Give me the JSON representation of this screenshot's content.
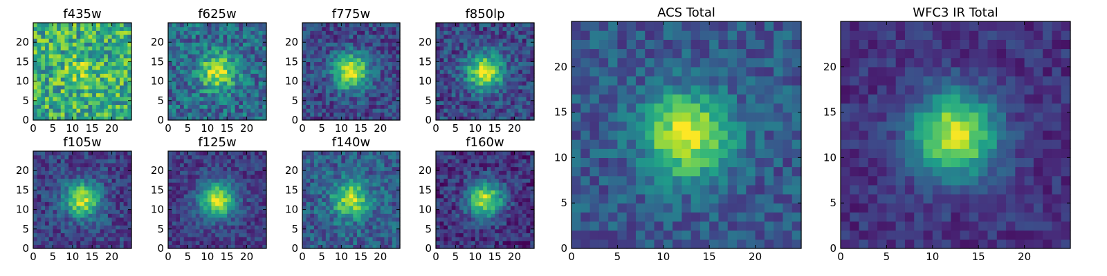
{
  "chart_data": [
    {
      "type": "heatmap",
      "title": "f435w",
      "colormap": "viridis",
      "peak": 0.15,
      "noise": 0.55,
      "bias": 0.62,
      "seed": 11,
      "xlim": [
        0,
        25
      ],
      "ylim": [
        0,
        25
      ],
      "xticks": [
        0,
        5,
        10,
        15,
        20
      ],
      "yticks": [
        0,
        5,
        10,
        15,
        20
      ],
      "xtick_labels": [
        "0",
        "5",
        "10",
        "15",
        "20"
      ],
      "ytick_labels": [
        "0",
        "5",
        "10",
        "15",
        "20"
      ]
    },
    {
      "type": "heatmap",
      "title": "f625w",
      "colormap": "viridis",
      "peak": 0.6,
      "noise": 0.42,
      "bias": 0.35,
      "seed": 23,
      "xlim": [
        0,
        25
      ],
      "ylim": [
        0,
        25
      ],
      "xticks": [
        0,
        5,
        10,
        15,
        20
      ],
      "yticks": [
        0,
        5,
        10,
        15,
        20
      ],
      "xtick_labels": [
        "0",
        "5",
        "10",
        "15",
        "20"
      ],
      "ytick_labels": [
        "0",
        "5",
        "10",
        "15",
        "20"
      ]
    },
    {
      "type": "heatmap",
      "title": "f775w",
      "colormap": "viridis",
      "peak": 0.75,
      "noise": 0.33,
      "bias": 0.22,
      "seed": 37,
      "xlim": [
        0,
        25
      ],
      "ylim": [
        0,
        25
      ],
      "xticks": [
        0,
        5,
        10,
        15,
        20
      ],
      "yticks": [
        0,
        5,
        10,
        15,
        20
      ],
      "xtick_labels": [
        "0",
        "5",
        "10",
        "15",
        "20"
      ],
      "ytick_labels": [
        "0",
        "5",
        "10",
        "15",
        "20"
      ]
    },
    {
      "type": "heatmap",
      "title": "f850lp",
      "colormap": "viridis",
      "peak": 0.75,
      "noise": 0.35,
      "bias": 0.22,
      "seed": 41,
      "xlim": [
        0,
        25
      ],
      "ylim": [
        0,
        25
      ],
      "xticks": [
        0,
        5,
        10,
        15,
        20
      ],
      "yticks": [
        0,
        5,
        10,
        15,
        20
      ],
      "xtick_labels": [
        "0",
        "5",
        "10",
        "15",
        "20"
      ],
      "ytick_labels": [
        "0",
        "5",
        "10",
        "15",
        "20"
      ]
    },
    {
      "type": "heatmap",
      "title": "f105w",
      "colormap": "viridis",
      "peak": 0.7,
      "noise": 0.3,
      "bias": 0.2,
      "seed": 53,
      "xlim": [
        0,
        25
      ],
      "ylim": [
        0,
        25
      ],
      "xticks": [
        0,
        5,
        10,
        15,
        20
      ],
      "yticks": [
        0,
        5,
        10,
        15,
        20
      ],
      "xtick_labels": [
        "0",
        "5",
        "10",
        "15",
        "20"
      ],
      "ytick_labels": [
        "0",
        "5",
        "10",
        "15",
        "20"
      ]
    },
    {
      "type": "heatmap",
      "title": "f125w",
      "colormap": "viridis",
      "peak": 0.75,
      "noise": 0.25,
      "bias": 0.18,
      "seed": 67,
      "xlim": [
        0,
        25
      ],
      "ylim": [
        0,
        25
      ],
      "xticks": [
        0,
        5,
        10,
        15,
        20
      ],
      "yticks": [
        0,
        5,
        10,
        15,
        20
      ],
      "xtick_labels": [
        "0",
        "5",
        "10",
        "15",
        "20"
      ],
      "ytick_labels": [
        "0",
        "5",
        "10",
        "15",
        "20"
      ]
    },
    {
      "type": "heatmap",
      "title": "f140w",
      "colormap": "viridis",
      "peak": 0.6,
      "noise": 0.35,
      "bias": 0.3,
      "seed": 79,
      "xlim": [
        0,
        25
      ],
      "ylim": [
        0,
        25
      ],
      "xticks": [
        0,
        5,
        10,
        15,
        20
      ],
      "yticks": [
        0,
        5,
        10,
        15,
        20
      ],
      "xtick_labels": [
        "0",
        "5",
        "10",
        "15",
        "20"
      ],
      "ytick_labels": [
        "0",
        "5",
        "10",
        "15",
        "20"
      ]
    },
    {
      "type": "heatmap",
      "title": "f160w",
      "colormap": "viridis",
      "peak": 0.75,
      "noise": 0.3,
      "bias": 0.15,
      "seed": 83,
      "xlim": [
        0,
        25
      ],
      "ylim": [
        0,
        25
      ],
      "xticks": [
        0,
        5,
        10,
        15,
        20
      ],
      "yticks": [
        0,
        5,
        10,
        15,
        20
      ],
      "xtick_labels": [
        "0",
        "5",
        "10",
        "15",
        "20"
      ],
      "ytick_labels": [
        "0",
        "5",
        "10",
        "15",
        "20"
      ]
    },
    {
      "type": "heatmap",
      "title": "ACS Total",
      "colormap": "viridis",
      "peak": 0.7,
      "noise": 0.28,
      "bias": 0.28,
      "seed": 97,
      "xlim": [
        0,
        25
      ],
      "ylim": [
        0,
        25
      ],
      "xticks": [
        0,
        5,
        10,
        15,
        20
      ],
      "yticks": [
        0,
        5,
        10,
        15,
        20
      ],
      "xtick_labels": [
        "0",
        "5",
        "10",
        "15",
        "20"
      ],
      "ytick_labels": [
        "0",
        "5",
        "10",
        "15",
        "20"
      ]
    },
    {
      "type": "heatmap",
      "title": "WFC3 IR Total",
      "colormap": "viridis",
      "peak": 0.8,
      "noise": 0.2,
      "bias": 0.15,
      "seed": 101,
      "xlim": [
        0,
        25
      ],
      "ylim": [
        0,
        25
      ],
      "xticks": [
        0,
        5,
        10,
        15,
        20
      ],
      "yticks": [
        0,
        5,
        10,
        15,
        20
      ],
      "xtick_labels": [
        "0",
        "5",
        "10",
        "15",
        "20"
      ],
      "ytick_labels": [
        "0",
        "5",
        "10",
        "15",
        "20"
      ]
    }
  ],
  "source_center": [
    12,
    12
  ],
  "source_sigma": 3.2,
  "colormap_stops": [
    "#440154",
    "#482878",
    "#3e4989",
    "#31688e",
    "#26828e",
    "#1f9e89",
    "#35b779",
    "#6ece58",
    "#b5de2b",
    "#fde725"
  ]
}
